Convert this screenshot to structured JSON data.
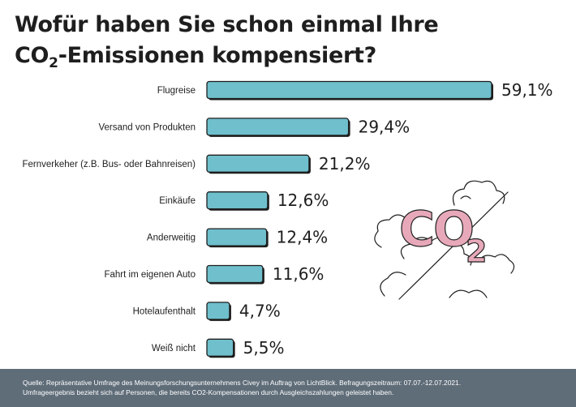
{
  "title": {
    "line1": "Wofür haben Sie schon einmal Ihre",
    "line2_main": "CO",
    "line2_sub": "2",
    "line2_rest": "-Emissionen kompensiert?"
  },
  "chart_data": {
    "type": "bar",
    "orientation": "horizontal",
    "categories": [
      "Flugreise",
      "Versand von Produkten",
      "Fernverkeher (z.B. Bus- oder Bahnreisen)",
      "Einkäufe",
      "Anderweitig",
      "Fahrt im eigenen Auto",
      "Hotelaufenthalt",
      "Weiß nicht"
    ],
    "values": [
      59.1,
      29.4,
      21.2,
      12.6,
      12.4,
      11.6,
      4.7,
      5.5
    ],
    "value_labels": [
      "59,1%",
      "29,4%",
      "21,2%",
      "12,6%",
      "12,4%",
      "11,6%",
      "4,7%",
      "5,5%"
    ],
    "xlim": [
      0,
      60
    ],
    "bar_color": "#6fbfcc",
    "grid": false,
    "legend": "none"
  },
  "illustration": {
    "label_main": "CO",
    "label_sub": "2",
    "color": "#e7a9b9"
  },
  "footer": {
    "line1": "Quelle: Repräsentative Umfrage des Meinungsforschungsunternehmens Civey im Auftrag von LichtBlick. Befragungszeitraum: 07.07.-12.07.2021.",
    "line2": "Umfrageergebnis bezieht sich auf Personen, die bereits CO2-Kompensationen durch Ausgleichszahlungen geleistet haben."
  }
}
